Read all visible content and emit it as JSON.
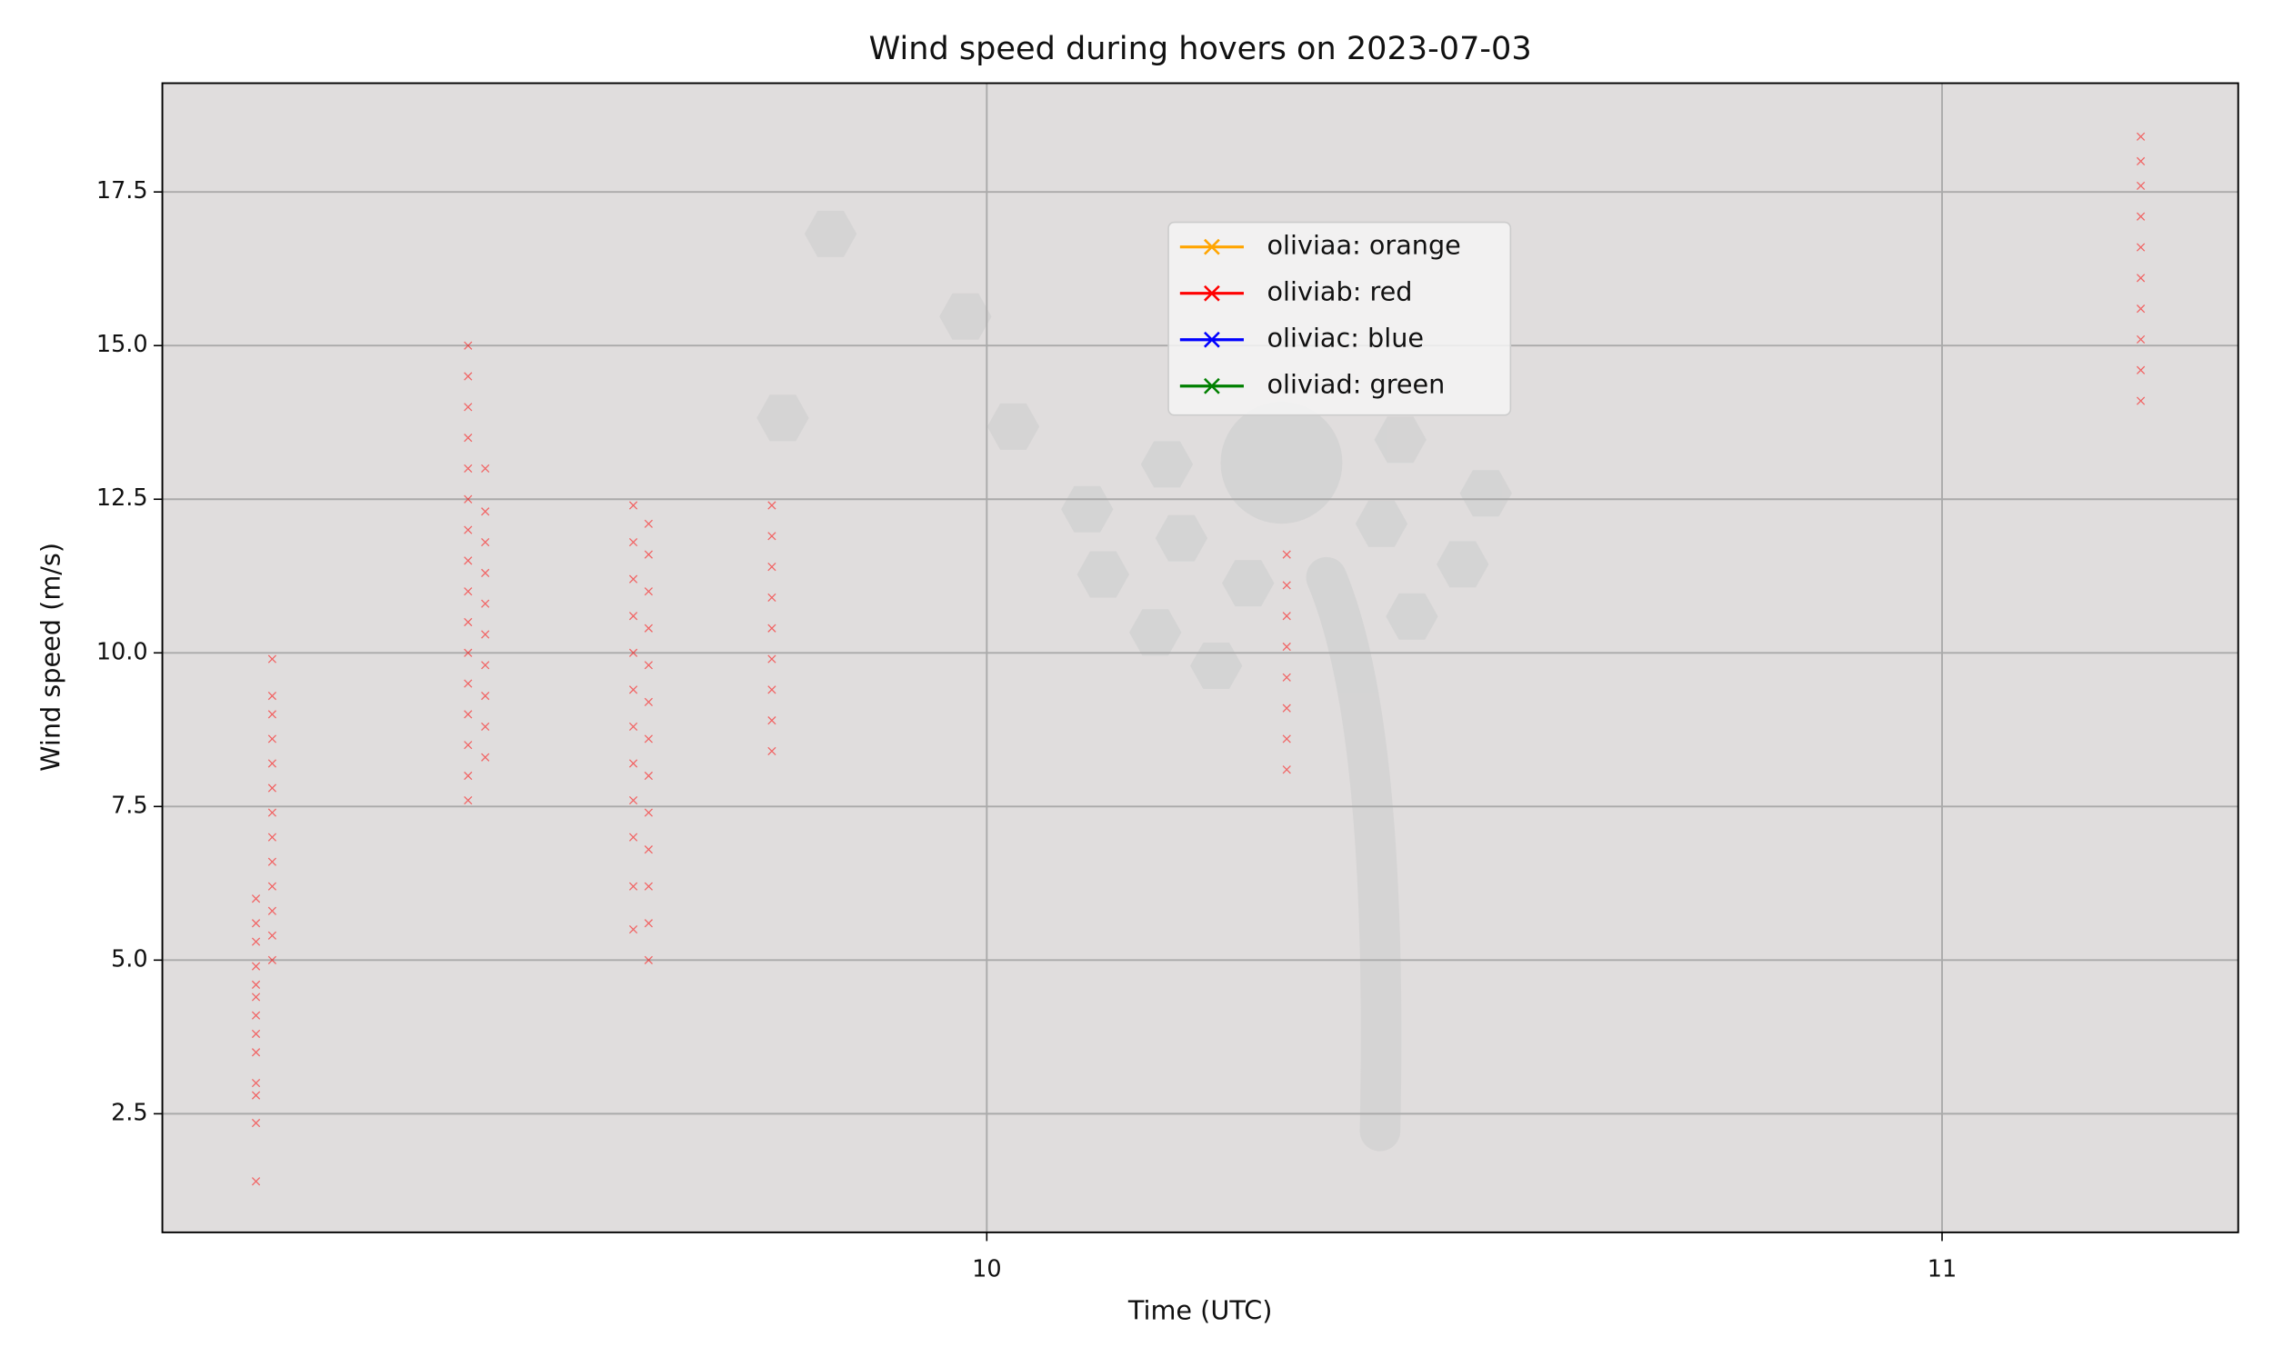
{
  "chart_data": {
    "type": "scatter",
    "title": "Wind speed during hovers on 2023-07-03",
    "x_label": "Time (UTC)",
    "y_label": "Wind speed (m/s)",
    "xlim": [
      9.137,
      11.31
    ],
    "xticks": [
      10,
      11
    ],
    "ylim": [
      0.57,
      19.27
    ],
    "yticks": [
      2.5,
      {
        "value": 5,
        "label": "5.0"
      },
      7.5,
      {
        "value": 10,
        "label": "10.0"
      },
      12.5,
      {
        "value": 15,
        "label": "15.0"
      },
      17.5
    ],
    "grid": true,
    "legend": "upper center",
    "series": [
      {
        "name": "oliviaa: orange",
        "color": "orange",
        "x": [],
        "values": []
      },
      {
        "name": "oliviab: red",
        "color": "red",
        "x": [
          9.235,
          9.235,
          9.235,
          9.235,
          9.235,
          9.235,
          9.235,
          9.235,
          9.235,
          9.235,
          9.235,
          9.235,
          9.235,
          9.252,
          9.252,
          9.252,
          9.252,
          9.252,
          9.252,
          9.252,
          9.252,
          9.252,
          9.252,
          9.252,
          9.252,
          9.252,
          9.457,
          9.457,
          9.457,
          9.457,
          9.457,
          9.457,
          9.457,
          9.457,
          9.457,
          9.457,
          9.457,
          9.457,
          9.457,
          9.457,
          9.457,
          9.457,
          9.475,
          9.475,
          9.475,
          9.475,
          9.475,
          9.475,
          9.475,
          9.475,
          9.475,
          9.475,
          9.63,
          9.63,
          9.63,
          9.63,
          9.63,
          9.63,
          9.63,
          9.63,
          9.63,
          9.63,
          9.63,
          9.63,
          9.646,
          9.646,
          9.646,
          9.646,
          9.646,
          9.646,
          9.646,
          9.646,
          9.646,
          9.646,
          9.646,
          9.646,
          9.646,
          9.775,
          9.775,
          9.775,
          9.775,
          9.775,
          9.775,
          9.775,
          9.775,
          9.775,
          10.314,
          10.314,
          10.314,
          10.314,
          10.314,
          10.314,
          10.314,
          10.314,
          11.208,
          11.208,
          11.208,
          11.208,
          11.208,
          11.208,
          11.208,
          11.208,
          11.208,
          11.208
        ],
        "values": [
          1.4,
          2.35,
          2.8,
          3.0,
          3.5,
          3.8,
          4.1,
          4.4,
          4.6,
          4.9,
          5.3,
          5.6,
          6.0,
          5.0,
          5.4,
          5.8,
          6.2,
          6.6,
          7.0,
          7.4,
          7.8,
          8.2,
          8.6,
          9.0,
          9.3,
          9.9,
          7.6,
          8.0,
          8.5,
          9.0,
          9.5,
          10.0,
          10.5,
          11.0,
          11.5,
          12.0,
          12.5,
          13.0,
          13.5,
          14.0,
          14.5,
          15.0,
          8.3,
          8.8,
          9.3,
          9.8,
          10.3,
          10.8,
          11.3,
          11.8,
          12.3,
          13.0,
          5.5,
          6.2,
          7.0,
          7.6,
          8.2,
          8.8,
          9.4,
          10.0,
          10.6,
          11.2,
          11.8,
          12.4,
          5.0,
          5.6,
          6.2,
          6.8,
          7.4,
          8.0,
          8.6,
          9.2,
          9.8,
          10.4,
          11.0,
          11.6,
          12.1,
          8.4,
          8.9,
          9.4,
          9.9,
          10.4,
          10.9,
          11.4,
          11.9,
          12.4,
          8.1,
          8.6,
          9.1,
          9.6,
          10.1,
          10.6,
          11.1,
          11.6,
          14.1,
          14.6,
          15.1,
          15.6,
          16.1,
          16.6,
          17.1,
          17.6,
          18.0,
          18.4
        ]
      },
      {
        "name": "oliviac: blue",
        "color": "blue",
        "x": [],
        "values": []
      },
      {
        "name": "oliviad: green",
        "color": "green",
        "x": [],
        "values": []
      }
    ]
  }
}
